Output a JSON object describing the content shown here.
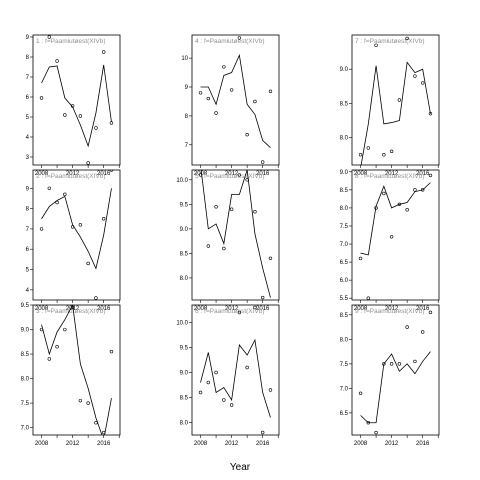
{
  "chart_data": {
    "type": "line",
    "xlabel": "Year",
    "panels": [
      {
        "label": "1 : f=Paamiutøest(XIVb)",
        "x_ticks": [
          "2008",
          "2012",
          "2016"
        ],
        "y_ticks": [
          "3",
          "4",
          "5",
          "6",
          "7",
          "8",
          "9"
        ],
        "ylim": [
          2.6,
          9.1
        ],
        "points": [
          [
            2008,
            5.95
          ],
          [
            2009,
            9.0
          ],
          [
            2010,
            7.8
          ],
          [
            2011,
            5.1
          ],
          [
            2012,
            5.55
          ],
          [
            2013,
            5.05
          ],
          [
            2014,
            2.7
          ],
          [
            2015,
            4.45
          ],
          [
            2016,
            8.25
          ],
          [
            2017,
            4.7
          ]
        ],
        "fit": [
          [
            2008,
            6.7
          ],
          [
            2009,
            7.5
          ],
          [
            2010,
            7.55
          ],
          [
            2011,
            5.95
          ],
          [
            2012,
            5.5
          ],
          [
            2013,
            4.6
          ],
          [
            2014,
            3.55
          ],
          [
            2015,
            5.2
          ],
          [
            2016,
            7.6
          ],
          [
            2017,
            4.75
          ]
        ]
      },
      {
        "label": "4 : f=Paamiutøest(XIVb)",
        "x_ticks": [
          "2008",
          "2012",
          "2016"
        ],
        "y_ticks": [
          "7",
          "8",
          "9",
          "10"
        ],
        "ylim": [
          6.3,
          10.8
        ],
        "points": [
          [
            2008,
            8.8
          ],
          [
            2009,
            8.6
          ],
          [
            2010,
            8.1
          ],
          [
            2011,
            9.7
          ],
          [
            2012,
            8.9
          ],
          [
            2013,
            10.7
          ],
          [
            2014,
            7.35
          ],
          [
            2015,
            8.5
          ],
          [
            2016,
            6.4
          ],
          [
            2017,
            8.85
          ]
        ],
        "fit": [
          [
            2008,
            9.0
          ],
          [
            2009,
            9.0
          ],
          [
            2010,
            8.4
          ],
          [
            2011,
            9.4
          ],
          [
            2012,
            9.5
          ],
          [
            2013,
            10.1
          ],
          [
            2014,
            8.4
          ],
          [
            2015,
            8.05
          ],
          [
            2016,
            7.15
          ],
          [
            2017,
            6.9
          ]
        ]
      },
      {
        "label": "7 : f=Paamiutøest(XIVb)",
        "x_ticks": [
          "2008",
          "2012",
          "2016"
        ],
        "y_ticks": [
          "8.0",
          "8.5",
          "9.0"
        ],
        "ylim": [
          7.6,
          9.5
        ],
        "points": [
          [
            2008,
            7.75
          ],
          [
            2009,
            7.85
          ],
          [
            2010,
            9.35
          ],
          [
            2011,
            7.75
          ],
          [
            2012,
            7.8
          ],
          [
            2013,
            8.55
          ],
          [
            2014,
            9.45
          ],
          [
            2015,
            8.9
          ],
          [
            2016,
            8.8
          ],
          [
            2017,
            8.35
          ]
        ],
        "fit": [
          [
            2008,
            7.55
          ],
          [
            2009,
            8.2
          ],
          [
            2010,
            9.05
          ],
          [
            2011,
            8.2
          ],
          [
            2012,
            8.22
          ],
          [
            2013,
            8.25
          ],
          [
            2014,
            9.1
          ],
          [
            2015,
            8.95
          ],
          [
            2016,
            9.0
          ],
          [
            2017,
            8.35
          ]
        ]
      },
      {
        "label": "2 : f=Paamiutøest(XIVb)",
        "x_ticks": [
          "2008",
          "2012",
          "2016"
        ],
        "y_ticks": [
          "4",
          "5",
          "6",
          "7",
          "8",
          "9"
        ],
        "ylim": [
          3.5,
          9.9
        ],
        "points": [
          [
            2008,
            7.0
          ],
          [
            2009,
            9.0
          ],
          [
            2010,
            8.3
          ],
          [
            2011,
            8.7
          ],
          [
            2012,
            7.1
          ],
          [
            2013,
            7.2
          ],
          [
            2014,
            5.3
          ],
          [
            2015,
            3.6
          ],
          [
            2016,
            7.5
          ],
          [
            2017,
            9.9
          ]
        ],
        "fit": [
          [
            2008,
            7.5
          ],
          [
            2009,
            8.1
          ],
          [
            2010,
            8.4
          ],
          [
            2011,
            8.6
          ],
          [
            2012,
            7.2
          ],
          [
            2013,
            6.6
          ],
          [
            2014,
            5.9
          ],
          [
            2015,
            5.05
          ],
          [
            2016,
            6.7
          ],
          [
            2017,
            9.0
          ]
        ]
      },
      {
        "label": "5 : f=Paamiutøest(XIVb)",
        "x_ticks": [
          "2008",
          "2012",
          "2016"
        ],
        "y_ticks": [
          "8.0",
          "8.5",
          "9.0",
          "9.5",
          "10.0"
        ],
        "ylim": [
          7.55,
          10.2
        ],
        "points": [
          [
            2008,
            10.1
          ],
          [
            2009,
            8.65
          ],
          [
            2010,
            9.45
          ],
          [
            2011,
            8.6
          ],
          [
            2012,
            9.4
          ],
          [
            2013,
            10.1
          ],
          [
            2014,
            10.0
          ],
          [
            2015,
            9.35
          ],
          [
            2016,
            7.6
          ],
          [
            2017,
            8.4
          ]
        ],
        "fit": [
          [
            2008,
            10.3
          ],
          [
            2009,
            9.0
          ],
          [
            2010,
            9.1
          ],
          [
            2011,
            8.7
          ],
          [
            2012,
            9.7
          ],
          [
            2013,
            9.7
          ],
          [
            2014,
            10.2
          ],
          [
            2015,
            8.9
          ],
          [
            2016,
            8.2
          ],
          [
            2017,
            7.6
          ]
        ]
      },
      {
        "label": "8 : f=Paamiutøest(XIVb)",
        "x_ticks": [
          "2008",
          "2012",
          "2016"
        ],
        "y_ticks": [
          "5.5",
          "6.0",
          "6.5",
          "7.0",
          "7.5",
          "8.0",
          "8.5",
          "9.0"
        ],
        "ylim": [
          5.45,
          9.05
        ],
        "points": [
          [
            2008,
            6.6
          ],
          [
            2009,
            5.5
          ],
          [
            2010,
            8.0
          ],
          [
            2011,
            8.4
          ],
          [
            2012,
            7.2
          ],
          [
            2013,
            8.1
          ],
          [
            2014,
            7.95
          ],
          [
            2015,
            8.5
          ],
          [
            2016,
            8.5
          ],
          [
            2017,
            8.9
          ]
        ],
        "fit": [
          [
            2008,
            6.75
          ],
          [
            2009,
            6.7
          ],
          [
            2010,
            8.05
          ],
          [
            2011,
            8.6
          ],
          [
            2012,
            8.0
          ],
          [
            2013,
            8.1
          ],
          [
            2014,
            8.15
          ],
          [
            2015,
            8.45
          ],
          [
            2016,
            8.5
          ],
          [
            2017,
            8.7
          ]
        ]
      },
      {
        "label": "3 : f=Paamiutøest(XIVb)",
        "x_ticks": [
          "2008",
          "2012",
          "2016"
        ],
        "y_ticks": [
          "7.0",
          "7.5",
          "8.0",
          "8.5",
          "9.0",
          "9.5"
        ],
        "ylim": [
          6.85,
          9.5
        ],
        "points": [
          [
            2008,
            9.0
          ],
          [
            2009,
            8.4
          ],
          [
            2010,
            8.65
          ],
          [
            2011,
            9.0
          ],
          [
            2012,
            9.45
          ],
          [
            2013,
            7.55
          ],
          [
            2014,
            7.5
          ],
          [
            2015,
            7.1
          ],
          [
            2016,
            6.9
          ],
          [
            2017,
            8.55
          ]
        ],
        "fit": [
          [
            2008,
            9.1
          ],
          [
            2009,
            8.5
          ],
          [
            2010,
            8.95
          ],
          [
            2011,
            9.2
          ],
          [
            2012,
            9.5
          ],
          [
            2013,
            8.3
          ],
          [
            2014,
            7.8
          ],
          [
            2015,
            7.2
          ],
          [
            2016,
            6.75
          ],
          [
            2017,
            7.6
          ]
        ]
      },
      {
        "label": "6 : f=Paamiutøest(XIVb)",
        "x_ticks": [
          "2008",
          "2012",
          "2016"
        ],
        "y_ticks": [
          "8.0",
          "8.5",
          "9.0",
          "9.5",
          "10.0"
        ],
        "ylim": [
          7.75,
          10.35
        ],
        "points": [
          [
            2008,
            8.6
          ],
          [
            2009,
            8.8
          ],
          [
            2010,
            9.0
          ],
          [
            2011,
            8.45
          ],
          [
            2012,
            8.35
          ],
          [
            2013,
            10.2
          ],
          [
            2014,
            9.1
          ],
          [
            2015,
            10.3
          ],
          [
            2016,
            7.8
          ],
          [
            2017,
            8.65
          ]
        ],
        "fit": [
          [
            2008,
            8.8
          ],
          [
            2009,
            9.4
          ],
          [
            2010,
            8.6
          ],
          [
            2011,
            8.7
          ],
          [
            2012,
            8.45
          ],
          [
            2013,
            9.55
          ],
          [
            2014,
            9.35
          ],
          [
            2015,
            9.65
          ],
          [
            2016,
            8.6
          ],
          [
            2017,
            8.1
          ]
        ]
      },
      {
        "label": "9 : f=Paamiutøest(XIVb)",
        "x_ticks": [
          "2008",
          "2012",
          "2016"
        ],
        "y_ticks": [
          "6.5",
          "7.0",
          "7.5",
          "8.0",
          "8.5"
        ],
        "ylim": [
          6.05,
          8.7
        ],
        "points": [
          [
            2008,
            6.9
          ],
          [
            2009,
            6.3
          ],
          [
            2010,
            6.1
          ],
          [
            2011,
            7.5
          ],
          [
            2012,
            7.5
          ],
          [
            2013,
            7.5
          ],
          [
            2014,
            8.25
          ],
          [
            2015,
            7.55
          ],
          [
            2016,
            8.15
          ],
          [
            2017,
            8.55
          ]
        ],
        "fit": [
          [
            2008,
            6.45
          ],
          [
            2009,
            6.3
          ],
          [
            2010,
            6.3
          ],
          [
            2011,
            7.5
          ],
          [
            2012,
            7.7
          ],
          [
            2013,
            7.35
          ],
          [
            2014,
            7.5
          ],
          [
            2015,
            7.3
          ],
          [
            2016,
            7.55
          ],
          [
            2017,
            7.75
          ]
        ]
      }
    ]
  }
}
